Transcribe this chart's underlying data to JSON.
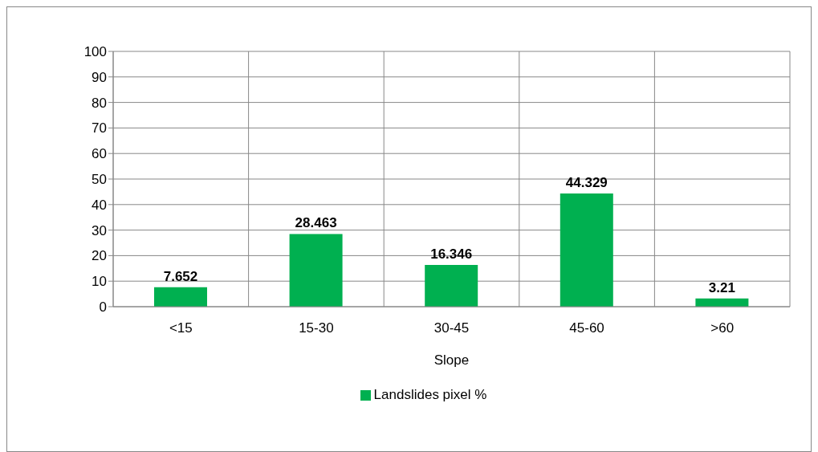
{
  "chart_data": {
    "type": "bar",
    "xlabel": "Slope",
    "categories": [
      "<15",
      "15-30",
      "30-45",
      "45-60",
      ">60"
    ],
    "series": [
      {
        "name": "Landslides pixel %",
        "color": "#00b050",
        "values": [
          7.652,
          28.463,
          16.346,
          44.329,
          3.21
        ]
      }
    ],
    "ylim": [
      0,
      100
    ],
    "yticks": [
      0,
      10,
      20,
      30,
      40,
      50,
      60,
      70,
      80,
      90,
      100
    ],
    "grid": true,
    "legend": "bottom",
    "data_labels": true
  }
}
